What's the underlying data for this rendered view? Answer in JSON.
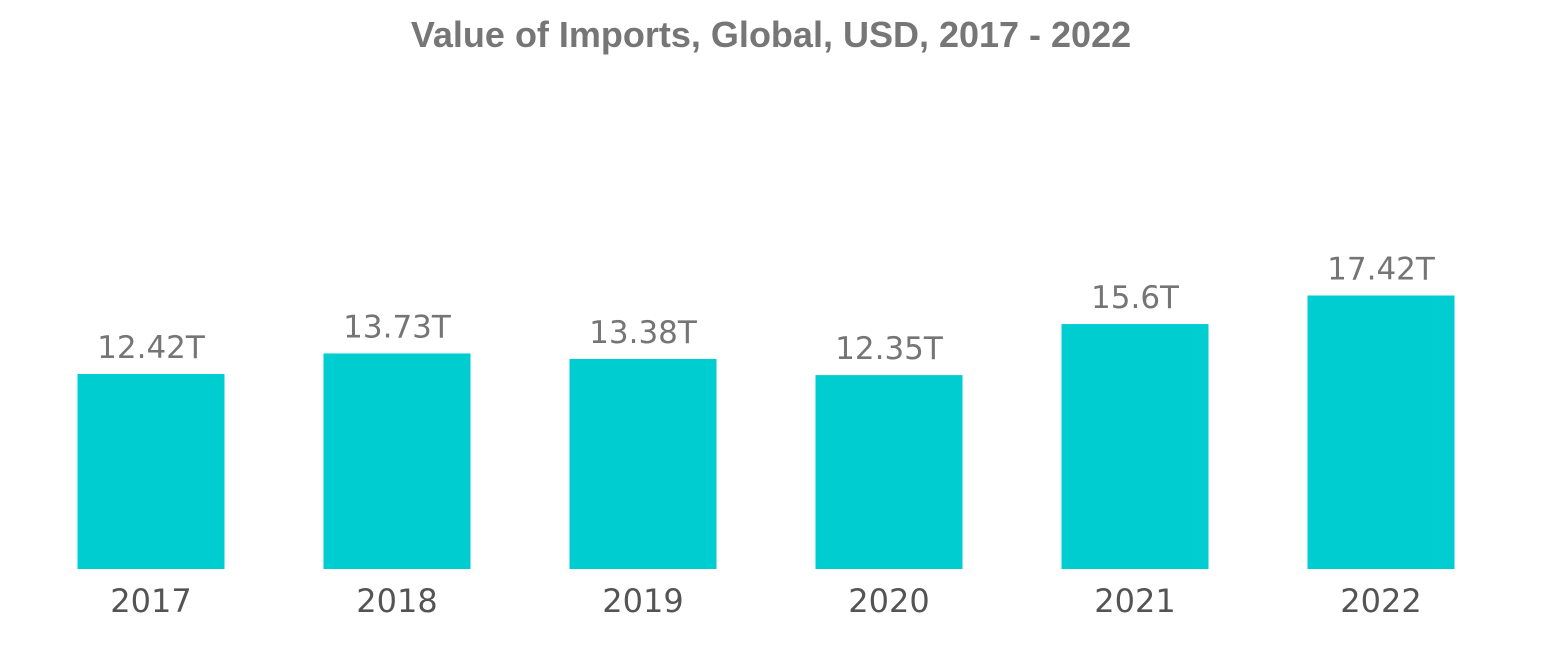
{
  "chart_data": {
    "type": "bar",
    "title": "Value of Imports, Global, USD, 2017 - 2022",
    "categories": [
      "2017",
      "2018",
      "2019",
      "2020",
      "2021",
      "2022"
    ],
    "values": [
      12.42,
      13.73,
      13.38,
      12.35,
      15.6,
      17.42
    ],
    "value_labels": [
      "12.42T",
      "13.73T",
      "13.38T",
      "12.35T",
      "15.6T",
      "17.42T"
    ],
    "ylim": [
      0,
      18
    ],
    "grid": false,
    "legend": "none",
    "colors": {
      "bar": "#00CDD0",
      "title": "#767676",
      "value_label": "#757575",
      "tick_label": "#545454"
    }
  }
}
